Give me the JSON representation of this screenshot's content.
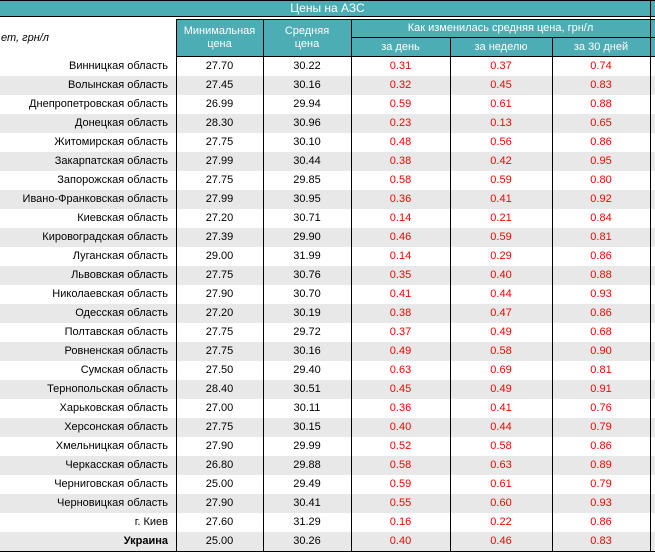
{
  "title": "Цены на АЗС",
  "header": {
    "fuel_label": "ет, грн/л",
    "min_label": "Минимальная цена",
    "avg_label": "Средняя цена",
    "group_label": "Как изменилась средняя цена, грн/л",
    "day_label": "за день",
    "week_label": "за неделю",
    "month_label": "за 30 дней"
  },
  "colors": {
    "header_bg": "#4cadb5",
    "header_text": "#ffffff",
    "stripe": "#e8e8e8",
    "change_text": "#ff0000",
    "border": "#000000"
  },
  "chart_data": {
    "type": "table",
    "title": "Цены на АЗС",
    "row_header_label": "ет, грн/л",
    "column_group": "Как изменилась средняя цена, грн/л",
    "columns": [
      "Минимальная цена",
      "Средняя цена",
      "за день",
      "за неделю",
      "за 30 дней"
    ],
    "rows": [
      {
        "region": "Винницкая область",
        "min": "27.70",
        "avg": "30.22",
        "day": "0.31",
        "week": "0.37",
        "month": "0.74",
        "bold": false
      },
      {
        "region": "Волынская область",
        "min": "27.45",
        "avg": "30.16",
        "day": "0.32",
        "week": "0.45",
        "month": "0.83",
        "bold": false
      },
      {
        "region": "Днепропетровская область",
        "min": "26.99",
        "avg": "29.94",
        "day": "0.59",
        "week": "0.61",
        "month": "0.88",
        "bold": false
      },
      {
        "region": "Донецкая область",
        "min": "28.30",
        "avg": "30.96",
        "day": "0.23",
        "week": "0.13",
        "month": "0.65",
        "bold": false
      },
      {
        "region": "Житомирская область",
        "min": "27.75",
        "avg": "30.10",
        "day": "0.48",
        "week": "0.56",
        "month": "0.86",
        "bold": false
      },
      {
        "region": "Закарпатская область",
        "min": "27.99",
        "avg": "30.44",
        "day": "0.38",
        "week": "0.42",
        "month": "0.95",
        "bold": false
      },
      {
        "region": "Запорожская область",
        "min": "27.75",
        "avg": "29.85",
        "day": "0.58",
        "week": "0.59",
        "month": "0.80",
        "bold": false
      },
      {
        "region": "Ивано-Франковская область",
        "min": "27.99",
        "avg": "30.95",
        "day": "0.36",
        "week": "0.41",
        "month": "0.92",
        "bold": false
      },
      {
        "region": "Киевская область",
        "min": "27.20",
        "avg": "30.71",
        "day": "0.14",
        "week": "0.21",
        "month": "0.84",
        "bold": false
      },
      {
        "region": "Кировоградская область",
        "min": "27.39",
        "avg": "29.90",
        "day": "0.46",
        "week": "0.59",
        "month": "0.81",
        "bold": false
      },
      {
        "region": "Луганская область",
        "min": "29.00",
        "avg": "31.99",
        "day": "0.14",
        "week": "0.29",
        "month": "0.86",
        "bold": false
      },
      {
        "region": "Львовская область",
        "min": "27.75",
        "avg": "30.76",
        "day": "0.35",
        "week": "0.40",
        "month": "0.88",
        "bold": false
      },
      {
        "region": "Николаевская область",
        "min": "27.90",
        "avg": "30.70",
        "day": "0.41",
        "week": "0.44",
        "month": "0.93",
        "bold": false
      },
      {
        "region": "Одесская область",
        "min": "27.20",
        "avg": "30.19",
        "day": "0.38",
        "week": "0.47",
        "month": "0.86",
        "bold": false
      },
      {
        "region": "Полтавская область",
        "min": "27.75",
        "avg": "29.72",
        "day": "0.37",
        "week": "0.49",
        "month": "0.68",
        "bold": false
      },
      {
        "region": "Ровненская область",
        "min": "27.75",
        "avg": "30.16",
        "day": "0.49",
        "week": "0.58",
        "month": "0.90",
        "bold": false
      },
      {
        "region": "Сумская область",
        "min": "27.50",
        "avg": "29.40",
        "day": "0.63",
        "week": "0.69",
        "month": "0.81",
        "bold": false
      },
      {
        "region": "Тернопольская область",
        "min": "28.40",
        "avg": "30.51",
        "day": "0.45",
        "week": "0.49",
        "month": "0.91",
        "bold": false
      },
      {
        "region": "Харьковская область",
        "min": "27.00",
        "avg": "30.11",
        "day": "0.36",
        "week": "0.41",
        "month": "0.76",
        "bold": false
      },
      {
        "region": "Херсонская область",
        "min": "27.75",
        "avg": "30.15",
        "day": "0.40",
        "week": "0.44",
        "month": "0.79",
        "bold": false
      },
      {
        "region": "Хмельницкая область",
        "min": "27.90",
        "avg": "29.99",
        "day": "0.52",
        "week": "0.58",
        "month": "0.86",
        "bold": false
      },
      {
        "region": "Черкасская область",
        "min": "26.80",
        "avg": "29.88",
        "day": "0.58",
        "week": "0.63",
        "month": "0.89",
        "bold": false
      },
      {
        "region": "Черниговская область",
        "min": "25.00",
        "avg": "29.49",
        "day": "0.59",
        "week": "0.61",
        "month": "0.79",
        "bold": false
      },
      {
        "region": "Черновицкая область",
        "min": "27.90",
        "avg": "30.41",
        "day": "0.55",
        "week": "0.60",
        "month": "0.93",
        "bold": false
      },
      {
        "region": "г. Киев",
        "min": "27.60",
        "avg": "31.29",
        "day": "0.16",
        "week": "0.22",
        "month": "0.86",
        "bold": false
      },
      {
        "region": "Украина",
        "min": "25.00",
        "avg": "30.26",
        "day": "0.40",
        "week": "0.46",
        "month": "0.83",
        "bold": true
      }
    ]
  }
}
